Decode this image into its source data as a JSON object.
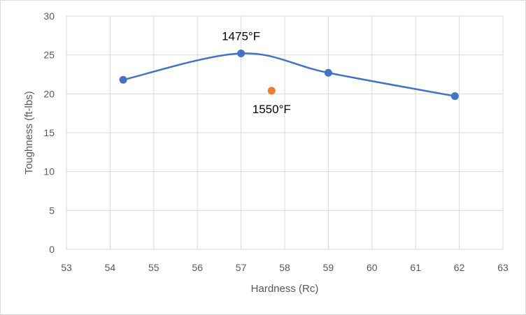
{
  "chart_data": {
    "type": "scatter",
    "title": "",
    "xlabel": "Hardness (Rc)",
    "ylabel": "Toughness (ft-lbs)",
    "xlim": [
      53,
      63
    ],
    "ylim": [
      0,
      30
    ],
    "xticks": [
      53,
      54,
      55,
      56,
      57,
      58,
      59,
      60,
      61,
      62,
      63
    ],
    "yticks": [
      0,
      5,
      10,
      15,
      20,
      25,
      30
    ],
    "grid": true,
    "legend": "none",
    "series": [
      {
        "color": "#4472c4",
        "smooth_line": true,
        "points": [
          {
            "x": 54.3,
            "y": 21.8
          },
          {
            "x": 57.0,
            "y": 25.2
          },
          {
            "x": 59.0,
            "y": 22.7
          },
          {
            "x": 61.9,
            "y": 19.7
          }
        ]
      },
      {
        "color": "#ed7d31",
        "smooth_line": false,
        "points": [
          {
            "x": 57.7,
            "y": 20.4
          }
        ]
      }
    ],
    "annotations": [
      {
        "text": "1475°F",
        "x": 57.0,
        "y": 25.2,
        "position": "above"
      },
      {
        "text": "1550°F",
        "x": 57.7,
        "y": 20.4,
        "position": "below"
      }
    ]
  }
}
